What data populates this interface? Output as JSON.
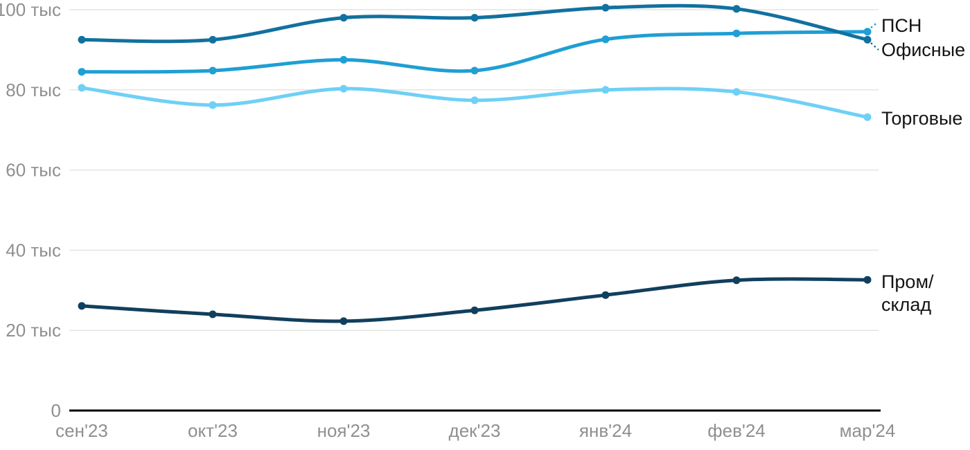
{
  "chart_data": {
    "type": "line",
    "title": "",
    "unit_suffix": "тыс",
    "categories": [
      "сен'23",
      "окт'23",
      "ноя'23",
      "дек'23",
      "янв'24",
      "фев'24",
      "мар'24"
    ],
    "series": [
      {
        "id": "psn",
        "name": "ПСН",
        "color": "#1f9fd4",
        "values": [
          84.5,
          84.8,
          87.5,
          84.8,
          92.6,
          94.1,
          94.5
        ],
        "label_lines": [
          "ПСН"
        ]
      },
      {
        "id": "offices",
        "name": "Офисные",
        "color": "#11719f",
        "values": [
          92.5,
          92.5,
          98,
          98,
          100.5,
          100.2,
          92.5
        ],
        "label_lines": [
          "Офисные"
        ]
      },
      {
        "id": "retail",
        "name": "Торговые",
        "color": "#6ed0f6",
        "values": [
          80.5,
          76.2,
          80.3,
          77.4,
          80,
          79.5,
          73.2
        ],
        "label_lines": [
          "Торговые"
        ]
      },
      {
        "id": "industrial",
        "name": "Пром/склад",
        "color": "#113f5e",
        "values": [
          26.1,
          24,
          22.3,
          25,
          28.8,
          32.5,
          32.6
        ],
        "label_lines": [
          "Пром/",
          "склад"
        ]
      }
    ],
    "yticks": [
      {
        "value": 0,
        "label": "0"
      },
      {
        "value": 20,
        "label": "20 тыс"
      },
      {
        "value": 40,
        "label": "40 тыс"
      },
      {
        "value": 60,
        "label": "60 тыс"
      },
      {
        "value": 80,
        "label": "80 тыс"
      },
      {
        "value": 100,
        "label": "100 тыс"
      }
    ],
    "ylim": [
      0,
      102
    ],
    "grid": true,
    "legend_position": "right"
  },
  "colors": {
    "grid": "#e4e4e4",
    "axis": "#000000",
    "tick_text": "#8f8f8f",
    "legend_text": "#141414",
    "background": "#ffffff"
  }
}
